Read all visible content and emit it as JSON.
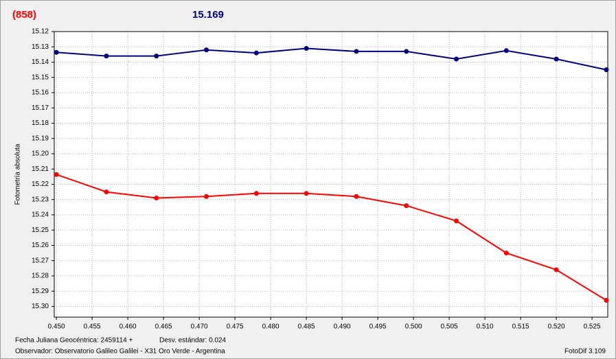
{
  "chart_data": {
    "type": "line",
    "header_left": "(858)",
    "header_right": "15.169",
    "y_label": "Fotometría absoluta",
    "footer_date": "Fecha Juliana Geocéntrica: 2459114 +",
    "footer_std": "Desv. estándar: 0.024",
    "footer_observer": "Observador: Observatorio Galileo Galilei - X31 Oro Verde - Argentina",
    "footer_version": "FotoDif 3.109",
    "x": [
      0.45,
      0.457,
      0.464,
      0.471,
      0.478,
      0.485,
      0.492,
      0.499,
      0.506,
      0.513,
      0.52,
      0.527
    ],
    "series": [
      {
        "color": "#00007f",
        "values": [
          15.1336,
          15.136,
          15.136,
          15.132,
          15.134,
          15.131,
          15.133,
          15.133,
          15.138,
          15.1325,
          15.138,
          15.145
        ]
      },
      {
        "color": "#ff0000",
        "values": [
          15.2136,
          15.225,
          15.229,
          15.228,
          15.226,
          15.226,
          15.228,
          15.234,
          15.244,
          15.265,
          15.276,
          15.296
        ]
      }
    ],
    "xlim": [
      0.4497,
      0.5272
    ],
    "ylim": [
      15.12,
      15.307
    ],
    "y_inverted": true,
    "grid": true,
    "xticks": [
      {
        "value": 0.45,
        "label": "0.450"
      },
      {
        "value": 0.455,
        "label": "0.455"
      },
      {
        "value": 0.46,
        "label": "0.460"
      },
      {
        "value": 0.465,
        "label": "0.465"
      },
      {
        "value": 0.47,
        "label": "0.470"
      },
      {
        "value": 0.475,
        "label": "0.475"
      },
      {
        "value": 0.48,
        "label": "0.480"
      },
      {
        "value": 0.485,
        "label": "0.485"
      },
      {
        "value": 0.49,
        "label": "0.490"
      },
      {
        "value": 0.495,
        "label": "0.495"
      },
      {
        "value": 0.5,
        "label": "0.500"
      },
      {
        "value": 0.505,
        "label": "0.505"
      },
      {
        "value": 0.51,
        "label": "0.510"
      },
      {
        "value": 0.515,
        "label": "0.515"
      },
      {
        "value": 0.52,
        "label": "0.520"
      },
      {
        "value": 0.525,
        "label": "0.525"
      }
    ],
    "yticks": [
      15.12,
      15.13,
      15.14,
      15.15,
      15.16,
      15.17,
      15.18,
      15.19,
      {
        "value": 15.2,
        "label": "15.20"
      },
      15.21,
      15.22,
      15.23,
      15.24,
      15.25,
      15.26,
      15.27,
      15.28,
      15.29,
      {
        "value": 15.3,
        "label": "15.30"
      }
    ]
  }
}
